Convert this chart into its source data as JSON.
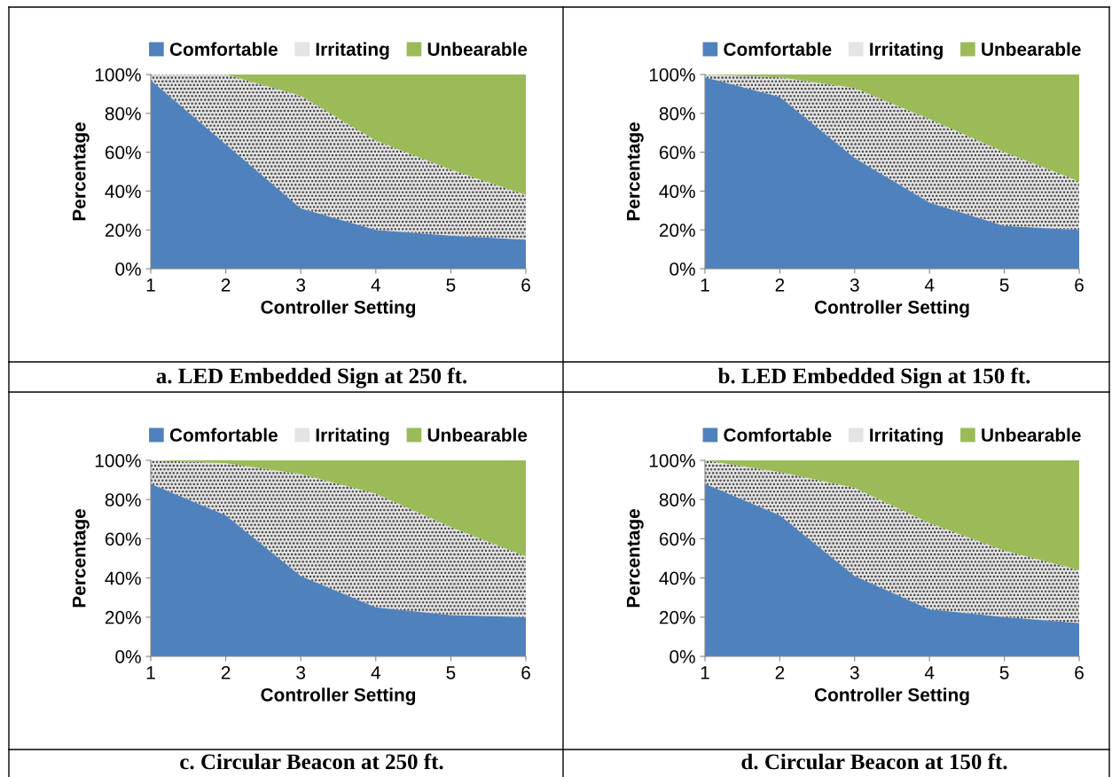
{
  "chart_data": [
    {
      "type": "area",
      "stacked": true,
      "title": "a. LED Embedded Sign at 250 ft.",
      "xlabel": "Controller Setting",
      "ylabel": "Percentage",
      "x": [
        1,
        2,
        3,
        4,
        5,
        6
      ],
      "xlim": [
        1,
        6
      ],
      "xticks": [
        1,
        2,
        3,
        4,
        5,
        6
      ],
      "ylim": [
        0,
        100
      ],
      "yticks": [
        {
          "value": 0,
          "label": "0%"
        },
        {
          "value": 20,
          "label": "20%"
        },
        {
          "value": 40,
          "label": "40%"
        },
        {
          "value": 60,
          "label": "60%"
        },
        {
          "value": 80,
          "label": "80%"
        },
        {
          "value": 100,
          "label": "100%"
        }
      ],
      "legend": "top",
      "grid": false,
      "series": [
        {
          "name": "Comfortable",
          "color": "#4f81bd",
          "values": [
            97,
            64,
            31,
            20,
            17,
            15
          ]
        },
        {
          "name": "Irritating",
          "color": "#e4e4e4",
          "values": [
            3,
            36,
            58,
            46,
            34,
            23
          ]
        },
        {
          "name": "Unbearable",
          "color": "#9bbb59",
          "values": [
            0,
            0,
            11,
            34,
            49,
            62
          ]
        }
      ]
    },
    {
      "type": "area",
      "stacked": true,
      "title": "b. LED Embedded Sign at 150 ft.",
      "xlabel": "Controller Setting",
      "ylabel": "Percentage",
      "x": [
        1,
        2,
        3,
        4,
        5,
        6
      ],
      "xlim": [
        1,
        6
      ],
      "xticks": [
        1,
        2,
        3,
        4,
        5,
        6
      ],
      "ylim": [
        0,
        100
      ],
      "yticks": [
        {
          "value": 0,
          "label": "0%"
        },
        {
          "value": 20,
          "label": "20%"
        },
        {
          "value": 40,
          "label": "40%"
        },
        {
          "value": 60,
          "label": "60%"
        },
        {
          "value": 80,
          "label": "80%"
        },
        {
          "value": 100,
          "label": "100%"
        }
      ],
      "legend": "top",
      "grid": false,
      "series": [
        {
          "name": "Comfortable",
          "color": "#4f81bd",
          "values": [
            98.5,
            88.5,
            57,
            34,
            22,
            20
          ]
        },
        {
          "name": "Irritating",
          "color": "#e4e4e4",
          "values": [
            1.5,
            10,
            36,
            43,
            38,
            25
          ]
        },
        {
          "name": "Unbearable",
          "color": "#9bbb59",
          "values": [
            0,
            1.5,
            7,
            23,
            40,
            55
          ]
        }
      ]
    },
    {
      "type": "area",
      "stacked": true,
      "title": "c. Circular Beacon at 250 ft.",
      "xlabel": "Controller Setting",
      "ylabel": "Percentage",
      "x": [
        1,
        2,
        3,
        4,
        5,
        6
      ],
      "xlim": [
        1,
        6
      ],
      "xticks": [
        1,
        2,
        3,
        4,
        5,
        6
      ],
      "ylim": [
        0,
        100
      ],
      "yticks": [
        {
          "value": 0,
          "label": "0%"
        },
        {
          "value": 20,
          "label": "20%"
        },
        {
          "value": 40,
          "label": "40%"
        },
        {
          "value": 60,
          "label": "60%"
        },
        {
          "value": 80,
          "label": "80%"
        },
        {
          "value": 100,
          "label": "100%"
        }
      ],
      "legend": "top",
      "grid": false,
      "series": [
        {
          "name": "Comfortable",
          "color": "#4f81bd",
          "values": [
            88,
            72,
            41,
            25,
            21,
            20
          ]
        },
        {
          "name": "Irritating",
          "color": "#e4e4e4",
          "values": [
            12,
            26.5,
            52,
            58,
            45,
            31
          ]
        },
        {
          "name": "Unbearable",
          "color": "#9bbb59",
          "values": [
            0,
            1.5,
            7,
            17,
            34,
            49
          ]
        }
      ]
    },
    {
      "type": "area",
      "stacked": true,
      "title": "d. Circular Beacon at 150 ft.",
      "xlabel": "Controller Setting",
      "ylabel": "Percentage",
      "x": [
        1,
        2,
        3,
        4,
        5,
        6
      ],
      "xlim": [
        1,
        6
      ],
      "xticks": [
        1,
        2,
        3,
        4,
        5,
        6
      ],
      "ylim": [
        0,
        100
      ],
      "yticks": [
        {
          "value": 0,
          "label": "0%"
        },
        {
          "value": 20,
          "label": "20%"
        },
        {
          "value": 40,
          "label": "40%"
        },
        {
          "value": 60,
          "label": "60%"
        },
        {
          "value": 80,
          "label": "80%"
        },
        {
          "value": 100,
          "label": "100%"
        }
      ],
      "legend": "top",
      "grid": false,
      "series": [
        {
          "name": "Comfortable",
          "color": "#4f81bd",
          "values": [
            88,
            72,
            41,
            24,
            20,
            17
          ]
        },
        {
          "name": "Irritating",
          "color": "#e4e4e4",
          "values": [
            12,
            22,
            45,
            44,
            34,
            27
          ]
        },
        {
          "name": "Unbearable",
          "color": "#9bbb59",
          "values": [
            0,
            6,
            14,
            32,
            46,
            56
          ]
        }
      ]
    }
  ]
}
